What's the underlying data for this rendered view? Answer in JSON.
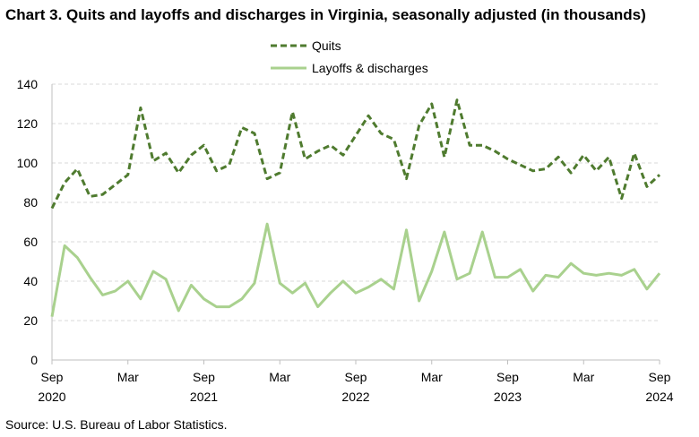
{
  "title": "Chart 3. Quits and layoffs and discharges in Virginia, seasonally adjusted (in thousands)",
  "source": "Source: U.S. Bureau of Labor Statistics.",
  "chart_data": {
    "type": "line",
    "title": "Chart 3. Quits and layoffs and discharges in Virginia, seasonally adjusted (in thousands)",
    "xlabel": "",
    "ylabel": "",
    "ylim": [
      0,
      140
    ],
    "yticks": [
      0,
      20,
      40,
      60,
      80,
      100,
      120,
      140
    ],
    "grid": true,
    "legend_position": "top-center",
    "x_tick_labels": [
      {
        "month": "Sep",
        "year": "2020"
      },
      {
        "month": "Mar",
        "year": ""
      },
      {
        "month": "Sep",
        "year": "2021"
      },
      {
        "month": "Mar",
        "year": ""
      },
      {
        "month": "Sep",
        "year": "2022"
      },
      {
        "month": "Mar",
        "year": ""
      },
      {
        "month": "Sep",
        "year": "2023"
      },
      {
        "month": "Mar",
        "year": ""
      },
      {
        "month": "Sep",
        "year": "2024"
      }
    ],
    "x_start": "2020-09",
    "x_end": "2024-09",
    "series": [
      {
        "name": "Quits",
        "color": "#4f7b2f",
        "style": "dashed",
        "values": [
          77,
          90,
          97,
          83,
          84,
          89,
          94,
          128,
          101,
          105,
          95,
          104,
          109,
          96,
          99,
          118,
          115,
          92,
          95,
          126,
          102,
          106,
          109,
          104,
          114,
          124,
          115,
          112,
          92,
          119,
          130,
          103,
          132,
          109,
          109,
          106,
          102,
          99,
          96,
          97,
          103,
          95,
          104,
          96,
          103,
          82,
          105,
          88,
          94
        ]
      },
      {
        "name": "Layoffs & discharges",
        "color": "#a9d18e",
        "style": "solid",
        "values": [
          22,
          58,
          52,
          42,
          33,
          35,
          40,
          31,
          45,
          41,
          25,
          38,
          31,
          27,
          27,
          31,
          39,
          69,
          39,
          34,
          39,
          27,
          34,
          40,
          34,
          37,
          41,
          36,
          66,
          30,
          45,
          65,
          41,
          44,
          65,
          42,
          42,
          46,
          35,
          43,
          42,
          49,
          44,
          43,
          44,
          43,
          46,
          36,
          44
        ]
      }
    ]
  }
}
